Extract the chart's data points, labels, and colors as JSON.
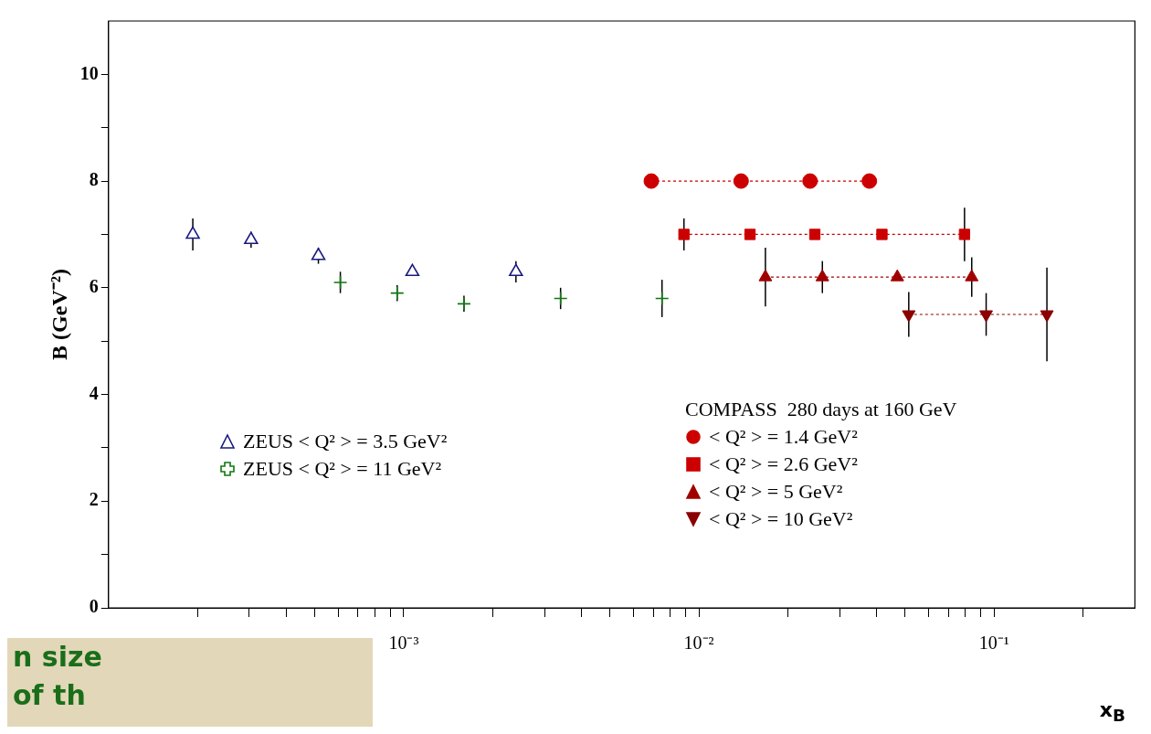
{
  "chart_data": {
    "type": "scatter",
    "ylabel": "B (GeV⁻²)",
    "xlabel": "x$_{B}$",
    "log": "x",
    "xlim": [
      0.0001,
      0.3
    ],
    "ylim": [
      0,
      11
    ],
    "xticks": [
      {
        "value": 0.0002,
        "label": null
      },
      {
        "value": 0.0003,
        "label": null
      },
      {
        "value": 0.0004,
        "label": null
      },
      {
        "value": 0.0005,
        "label": null
      },
      {
        "value": 0.0006,
        "label": null
      },
      {
        "value": 0.0007,
        "label": null
      },
      {
        "value": 0.0008,
        "label": null
      },
      {
        "value": 0.0009,
        "label": null
      },
      {
        "value": 0.001,
        "label": "10⁻³"
      },
      {
        "value": 0.002,
        "label": null
      },
      {
        "value": 0.003,
        "label": null
      },
      {
        "value": 0.004,
        "label": null
      },
      {
        "value": 0.005,
        "label": null
      },
      {
        "value": 0.006,
        "label": null
      },
      {
        "value": 0.007,
        "label": null
      },
      {
        "value": 0.008,
        "label": null
      },
      {
        "value": 0.009,
        "label": null
      },
      {
        "value": 0.01,
        "label": "10⁻²"
      },
      {
        "value": 0.02,
        "label": null
      },
      {
        "value": 0.03,
        "label": null
      },
      {
        "value": 0.04,
        "label": null
      },
      {
        "value": 0.05,
        "label": null
      },
      {
        "value": 0.06,
        "label": null
      },
      {
        "value": 0.07,
        "label": null
      },
      {
        "value": 0.08,
        "label": null
      },
      {
        "value": 0.09,
        "label": null
      },
      {
        "value": 0.1,
        "label": "10⁻¹"
      },
      {
        "value": 0.2,
        "label": null
      }
    ],
    "yticks": [
      0,
      {
        "value": 1,
        "label": null
      },
      2,
      {
        "value": 3,
        "label": null
      },
      4,
      {
        "value": 5,
        "label": null
      },
      6,
      {
        "value": 7,
        "label": null
      },
      8,
      {
        "value": 9,
        "label": null
      },
      10
    ],
    "legend": "bottom",
    "legend_title": "COMPASS  280 days at 160 GeV",
    "grid": false,
    "series": [
      {
        "name": "ZEUS  < Q² > = 3.5 GeV²",
        "color": "#1a1a80",
        "marker": "triangle",
        "x": [
          0.000193,
          0.000304,
          0.000514,
          0.00107,
          0.0024
        ],
        "values": [
          7.0,
          6.9,
          6.6,
          6.3,
          6.3
        ],
        "errors": [
          0.3,
          0.15,
          0.15,
          null,
          0.2
        ]
      },
      {
        "name": "ZEUS  < Q² > = 11 GeV²",
        "color": "#117711",
        "marker": "cross",
        "x": [
          0.00061,
          0.00095,
          0.0016,
          0.0034,
          0.0075
        ],
        "values": [
          6.1,
          5.9,
          5.7,
          5.8,
          5.8
        ],
        "errors": [
          0.2,
          0.15,
          0.15,
          0.2,
          0.35
        ]
      },
      {
        "name": "< Q² > = 1.4 GeV²",
        "type": "line",
        "color": "#cc0000",
        "marker": "circle",
        "line_style": "dotted",
        "x": [
          0.0069,
          0.0139,
          0.0238,
          0.0378
        ],
        "values": [
          8.0,
          8.0,
          8.0,
          8.0
        ]
      },
      {
        "name": "< Q² > = 2.6 GeV²",
        "type": "line",
        "color": "#cc0000",
        "marker": "square",
        "line_style": "dotted",
        "x": [
          0.0089,
          0.0149,
          0.0247,
          0.0417,
          0.0794
        ],
        "values": [
          7.0,
          7.0,
          7.0,
          7.0,
          7.0
        ],
        "errors": [
          0.3,
          null,
          null,
          null,
          0.5
        ]
      },
      {
        "name": "< Q² > = 5 GeV²",
        "type": "line",
        "color": "#a00000",
        "marker": "triangle",
        "line_style": "dotted",
        "x": [
          0.0168,
          0.0262,
          0.047,
          0.084
        ],
        "values": [
          6.2,
          6.2,
          6.2,
          6.2
        ],
        "errors": [
          0.55,
          0.3,
          null,
          0.37
        ]
      },
      {
        "name": "< Q² > = 10 GeV²",
        "type": "line",
        "color": "#8b0000",
        "marker": "triangle-down",
        "line_style": "dotted",
        "x": [
          0.0514,
          0.094,
          0.151
        ],
        "values": [
          5.5,
          5.5,
          5.5
        ],
        "errors": [
          0.42,
          0.4,
          0.88
        ]
      }
    ],
    "annotations": [
      "n size",
      "of th"
    ]
  }
}
